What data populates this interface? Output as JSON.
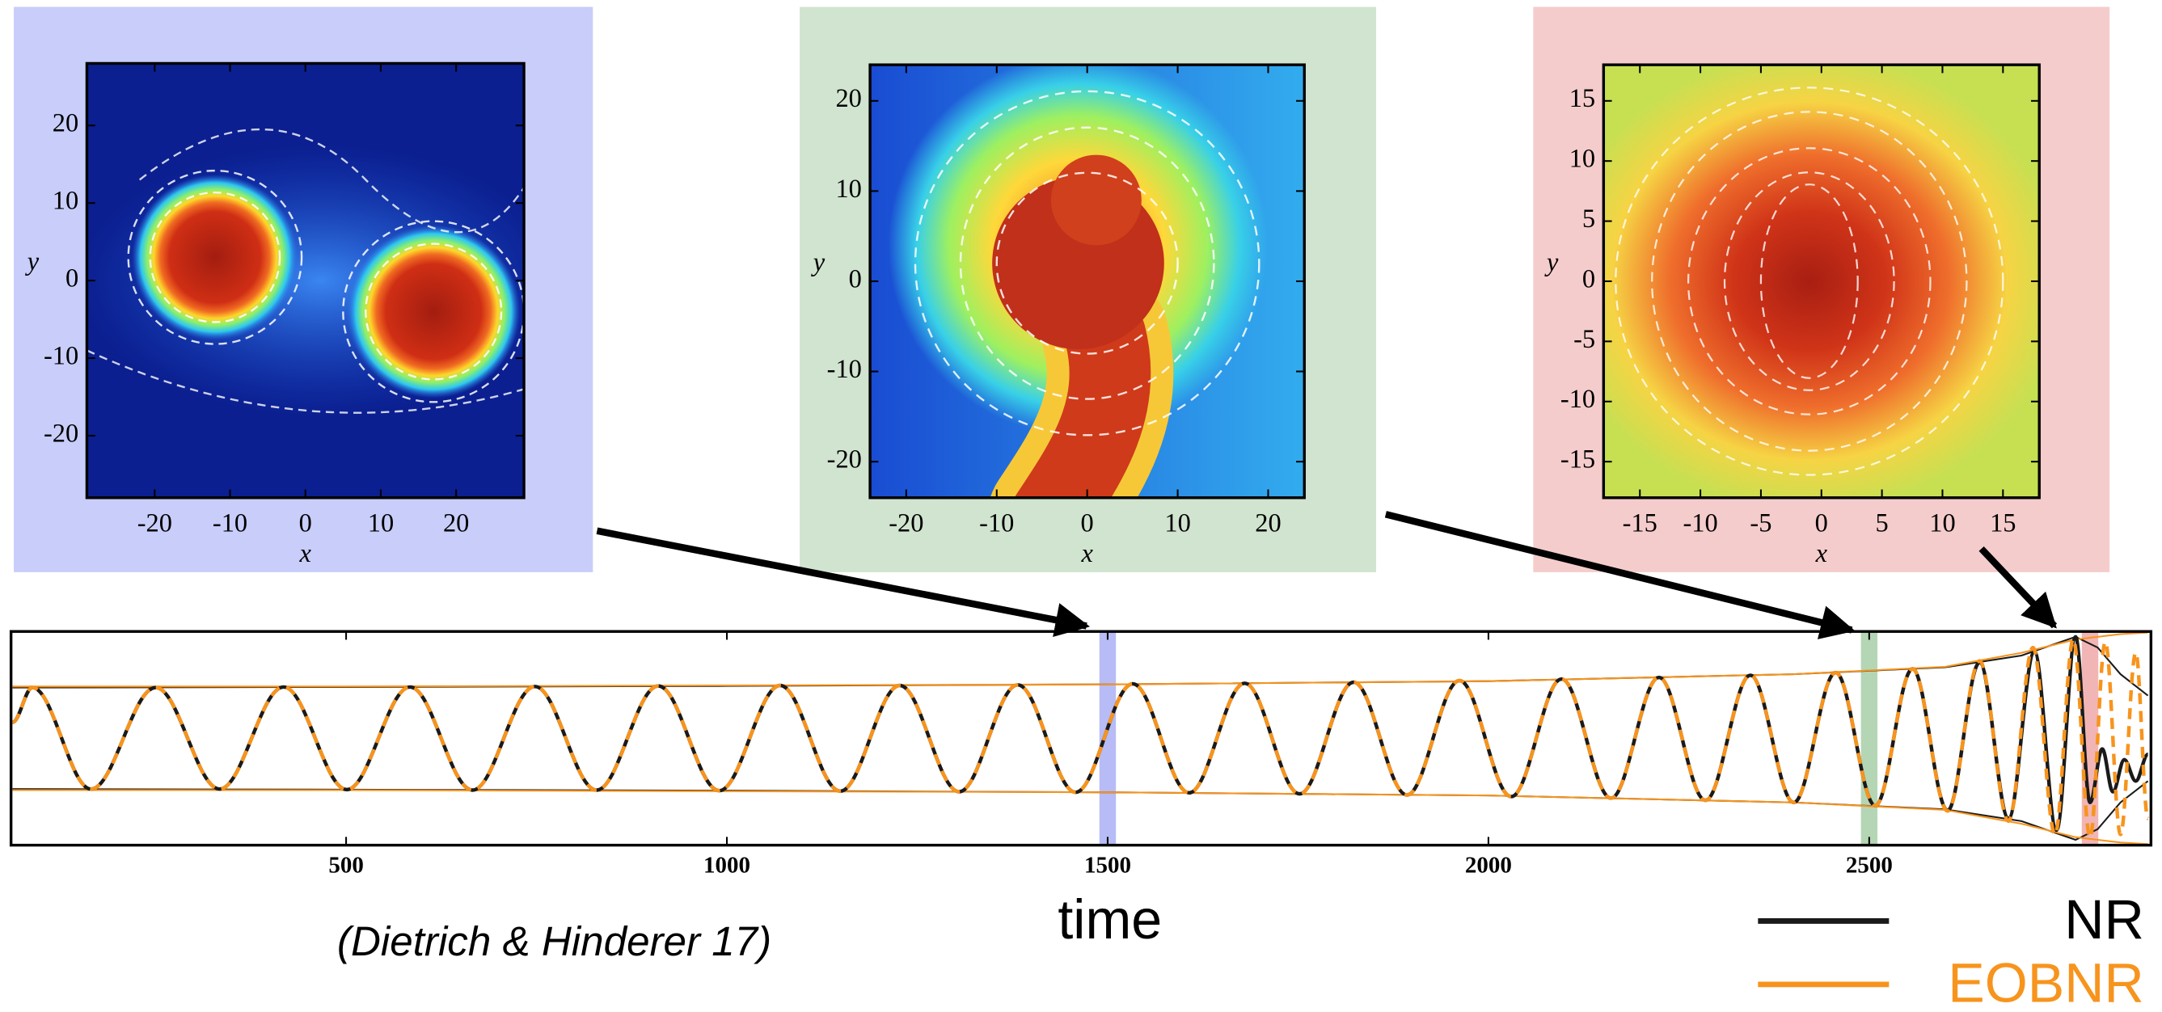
{
  "chart_data": [
    {
      "type": "heatmap",
      "xlabel": "x",
      "ylabel": "y",
      "xlim": [
        -29,
        29
      ],
      "ylim": [
        -28,
        28
      ],
      "xticks": [
        -20,
        -10,
        0,
        10,
        20
      ],
      "yticks": [
        -20,
        -10,
        0,
        10,
        20
      ]
    },
    {
      "type": "heatmap",
      "xlabel": "x",
      "ylabel": "y",
      "xlim": [
        -24,
        24
      ],
      "ylim": [
        -24,
        24
      ],
      "xticks": [
        -20,
        -10,
        0,
        10,
        20
      ],
      "yticks": [
        -20,
        -10,
        0,
        10,
        20
      ]
    },
    {
      "type": "heatmap",
      "xlabel": "x",
      "ylabel": "y",
      "xlim": [
        -18,
        18
      ],
      "ylim": [
        -18,
        18
      ],
      "xticks": [
        -15,
        -10,
        -5,
        0,
        5,
        10,
        15
      ],
      "yticks": [
        -15,
        -10,
        -5,
        0,
        5,
        10,
        15
      ]
    },
    {
      "type": "line",
      "xlabel": "time",
      "annotation": "(Dietrich & Hinderer 17)",
      "legend": "bottom-right",
      "xlim": [
        60,
        2870
      ],
      "ylim": [
        -2,
        2
      ],
      "xticks": [
        500,
        1000,
        1500,
        2000,
        2500
      ],
      "highlights": [
        {
          "x": 1500,
          "color": "#aab0f5"
        },
        {
          "x": 2500,
          "color": "#a8cfa8"
        },
        {
          "x": 2790,
          "color": "#f0a8a8"
        }
      ],
      "series": [
        {
          "name": "NR",
          "color": "#1a1a1a",
          "dashed": false,
          "x": [
            62,
            88,
            165,
            250,
            334,
            418,
            501,
            584,
            666,
            748,
            829,
            910,
            990,
            1070,
            1149,
            1227,
            1305,
            1382,
            1458,
            1533,
            1607,
            1680,
            1752,
            1823,
            1893,
            1962,
            2030,
            2096,
            2161,
            2224,
            2285,
            2344,
            2401,
            2456,
            2508,
            2557,
            2603,
            2645,
            2683,
            2717,
            2746,
            2771,
            2790,
            2806,
            2820,
            2835,
            2850,
            2866
          ],
          "values": [
            0.3,
            0.95,
            -0.95,
            0.95,
            -0.95,
            0.96,
            -0.96,
            0.96,
            -0.97,
            0.97,
            -0.97,
            0.98,
            -0.98,
            0.99,
            -0.99,
            0.99,
            -1.0,
            1.0,
            -1.01,
            1.02,
            -1.02,
            1.03,
            -1.04,
            1.05,
            -1.06,
            1.08,
            -1.09,
            1.11,
            -1.12,
            1.14,
            -1.16,
            1.18,
            -1.2,
            1.23,
            -1.26,
            1.3,
            -1.35,
            1.42,
            -1.5,
            1.62,
            -1.72,
            1.9,
            -1.2,
            -0.2,
            -1.0,
            -0.4,
            -0.8,
            -0.3
          ],
          "envelope_x": [
            62,
            500,
            1000,
            1500,
            2000,
            2400,
            2600,
            2700,
            2771,
            2800,
            2830,
            2866
          ],
          "envelope": [
            0.95,
            0.96,
            0.98,
            1.01,
            1.07,
            1.2,
            1.33,
            1.55,
            1.9,
            1.7,
            1.2,
            0.8
          ]
        },
        {
          "name": "EOBNR",
          "color": "#f7941d",
          "dashed": true,
          "x": [
            62,
            88,
            165,
            250,
            334,
            418,
            501,
            584,
            666,
            748,
            829,
            910,
            990,
            1070,
            1149,
            1227,
            1305,
            1382,
            1458,
            1533,
            1607,
            1680,
            1752,
            1823,
            1893,
            1962,
            2030,
            2096,
            2161,
            2224,
            2285,
            2344,
            2401,
            2456,
            2508,
            2557,
            2603,
            2645,
            2683,
            2715,
            2744,
            2768,
            2790,
            2810,
            2830,
            2850,
            2866
          ],
          "values": [
            0.3,
            0.95,
            -0.95,
            0.95,
            -0.95,
            0.96,
            -0.96,
            0.96,
            -0.97,
            0.97,
            -0.97,
            0.98,
            -0.98,
            0.99,
            -0.99,
            0.99,
            -1.0,
            1.0,
            -1.01,
            1.02,
            -1.02,
            1.03,
            -1.04,
            1.05,
            -1.06,
            1.08,
            -1.09,
            1.11,
            -1.12,
            1.14,
            -1.16,
            1.18,
            -1.2,
            1.23,
            -1.26,
            1.3,
            -1.36,
            1.45,
            -1.55,
            1.7,
            -1.8,
            1.85,
            -1.85,
            1.8,
            -1.8,
            1.6,
            -1.5
          ],
          "envelope_x": [
            62,
            500,
            1000,
            1500,
            2000,
            2400,
            2600,
            2700,
            2771,
            2800,
            2830,
            2866
          ],
          "envelope": [
            0.97,
            0.97,
            0.99,
            1.01,
            1.07,
            1.2,
            1.34,
            1.6,
            1.85,
            1.9,
            1.95,
            1.98
          ]
        }
      ]
    }
  ]
}
